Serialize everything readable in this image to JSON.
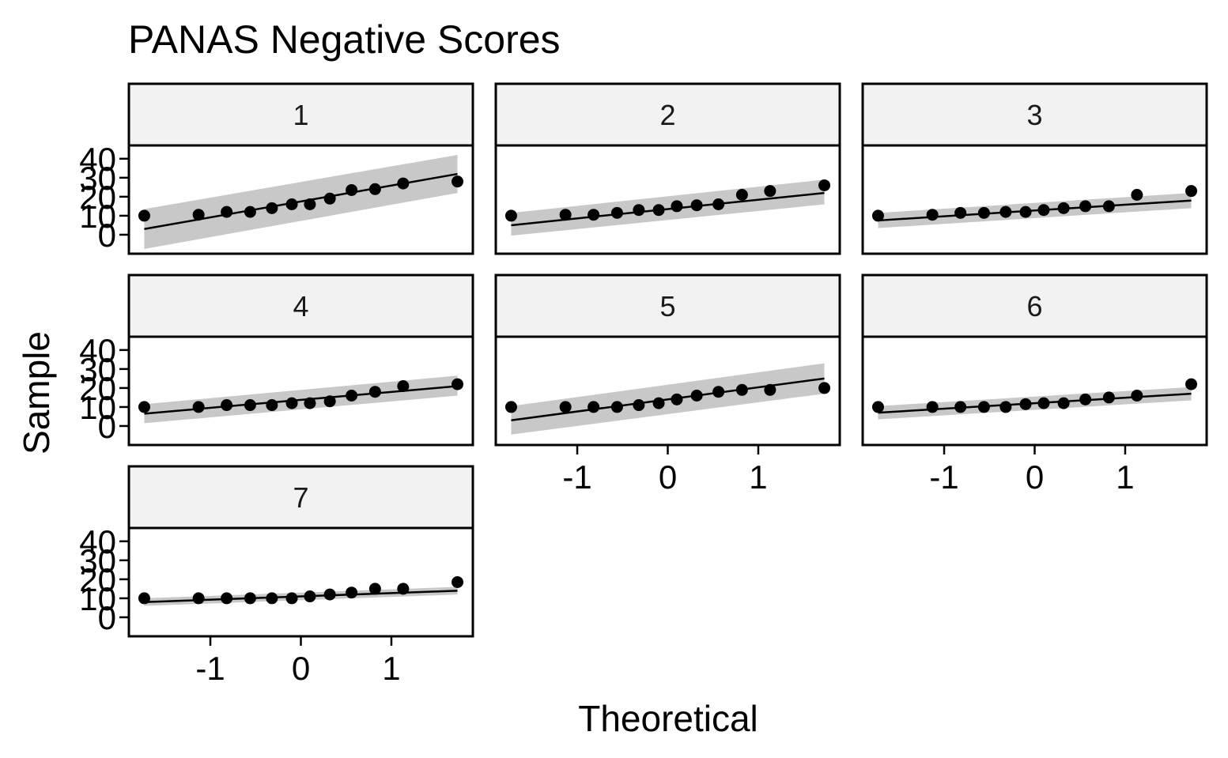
{
  "chart_data": {
    "type": "scatter",
    "title": "PANAS Negative Scores",
    "xlabel": "Theoretical",
    "ylabel": "Sample",
    "xlim": [
      -1.9,
      1.9
    ],
    "ylim": [
      -10,
      47
    ],
    "x_ticks": [
      -1,
      0,
      1
    ],
    "y_ticks": [
      0,
      10,
      20,
      30,
      40
    ],
    "grid": false,
    "legend": "none",
    "colors": {
      "points": "#000000",
      "band": "#bebebe",
      "strip": "#f2f2f2",
      "border": "#000000"
    },
    "panels": [
      {
        "label": "1",
        "points": [
          [
            -1.73,
            10
          ],
          [
            -1.13,
            10.5
          ],
          [
            -0.82,
            12
          ],
          [
            -0.56,
            12
          ],
          [
            -0.32,
            14
          ],
          [
            -0.1,
            16
          ],
          [
            0.1,
            16
          ],
          [
            0.32,
            19
          ],
          [
            0.56,
            23.5
          ],
          [
            0.82,
            24
          ],
          [
            1.13,
            27
          ],
          [
            1.73,
            28
          ]
        ],
        "line": {
          "x": [
            -1.73,
            1.73
          ],
          "y": [
            3,
            32
          ]
        },
        "band": {
          "upper": [
            13.5,
            42
          ],
          "lower": [
            -7.5,
            22
          ]
        }
      },
      {
        "label": "2",
        "points": [
          [
            -1.73,
            10
          ],
          [
            -1.13,
            10.5
          ],
          [
            -0.82,
            10.5
          ],
          [
            -0.56,
            11.5
          ],
          [
            -0.32,
            13
          ],
          [
            -0.1,
            13
          ],
          [
            0.1,
            15
          ],
          [
            0.32,
            15.5
          ],
          [
            0.56,
            16
          ],
          [
            0.82,
            21
          ],
          [
            1.13,
            23
          ],
          [
            1.73,
            26
          ]
        ],
        "line": {
          "x": [
            -1.73,
            1.73
          ],
          "y": [
            5,
            22
          ]
        },
        "band": {
          "upper": [
            11.5,
            29
          ],
          "lower": [
            -0.5,
            16
          ]
        }
      },
      {
        "label": "3",
        "points": [
          [
            -1.73,
            10
          ],
          [
            -1.13,
            10.5
          ],
          [
            -0.82,
            11.5
          ],
          [
            -0.56,
            11.5
          ],
          [
            -0.32,
            12
          ],
          [
            -0.1,
            12
          ],
          [
            0.1,
            13
          ],
          [
            0.32,
            14
          ],
          [
            0.56,
            15
          ],
          [
            0.82,
            15
          ],
          [
            1.13,
            21
          ],
          [
            1.73,
            23
          ]
        ],
        "line": {
          "x": [
            -1.73,
            1.73
          ],
          "y": [
            7.5,
            18
          ]
        },
        "band": {
          "upper": [
            11.5,
            22
          ],
          "lower": [
            3.5,
            14
          ]
        }
      },
      {
        "label": "4",
        "points": [
          [
            -1.73,
            10
          ],
          [
            -1.13,
            10
          ],
          [
            -0.82,
            11
          ],
          [
            -0.56,
            11
          ],
          [
            -0.32,
            11
          ],
          [
            -0.1,
            12
          ],
          [
            0.1,
            12
          ],
          [
            0.32,
            13
          ],
          [
            0.56,
            16
          ],
          [
            0.82,
            18
          ],
          [
            1.13,
            21
          ],
          [
            1.73,
            22
          ]
        ],
        "line": {
          "x": [
            -1.73,
            1.73
          ],
          "y": [
            6.5,
            21
          ]
        },
        "band": {
          "upper": [
            11.5,
            26.5
          ],
          "lower": [
            1.5,
            16
          ]
        }
      },
      {
        "label": "5",
        "points": [
          [
            -1.73,
            10
          ],
          [
            -1.13,
            10
          ],
          [
            -0.82,
            10
          ],
          [
            -0.56,
            10
          ],
          [
            -0.32,
            11
          ],
          [
            -0.1,
            12
          ],
          [
            0.1,
            14
          ],
          [
            0.32,
            16
          ],
          [
            0.56,
            18
          ],
          [
            0.82,
            19
          ],
          [
            1.13,
            19
          ],
          [
            1.73,
            20
          ]
        ],
        "line": {
          "x": [
            -1.73,
            1.73
          ],
          "y": [
            3,
            25
          ]
        },
        "band": {
          "upper": [
            10.5,
            33
          ],
          "lower": [
            -4.5,
            17
          ]
        }
      },
      {
        "label": "6",
        "points": [
          [
            -1.73,
            10
          ],
          [
            -1.13,
            10
          ],
          [
            -0.82,
            10
          ],
          [
            -0.56,
            10
          ],
          [
            -0.32,
            10
          ],
          [
            -0.1,
            11.5
          ],
          [
            0.1,
            12
          ],
          [
            0.32,
            12
          ],
          [
            0.56,
            14
          ],
          [
            0.82,
            15
          ],
          [
            1.13,
            16
          ],
          [
            1.73,
            22
          ]
        ],
        "line": {
          "x": [
            -1.73,
            1.73
          ],
          "y": [
            7,
            17
          ]
        },
        "band": {
          "upper": [
            10.5,
            20.5
          ],
          "lower": [
            3.5,
            13.5
          ]
        }
      },
      {
        "label": "7",
        "points": [
          [
            -1.73,
            10
          ],
          [
            -1.13,
            10
          ],
          [
            -0.82,
            10
          ],
          [
            -0.56,
            10
          ],
          [
            -0.32,
            10
          ],
          [
            -0.1,
            10
          ],
          [
            0.1,
            11
          ],
          [
            0.32,
            12
          ],
          [
            0.56,
            13
          ],
          [
            0.82,
            15
          ],
          [
            1.13,
            15
          ],
          [
            1.73,
            18.5
          ]
        ],
        "line": {
          "x": [
            -1.73,
            1.73
          ],
          "y": [
            8,
            14
          ]
        },
        "band": {
          "upper": [
            10,
            16
          ],
          "lower": [
            6,
            12
          ]
        }
      }
    ]
  }
}
